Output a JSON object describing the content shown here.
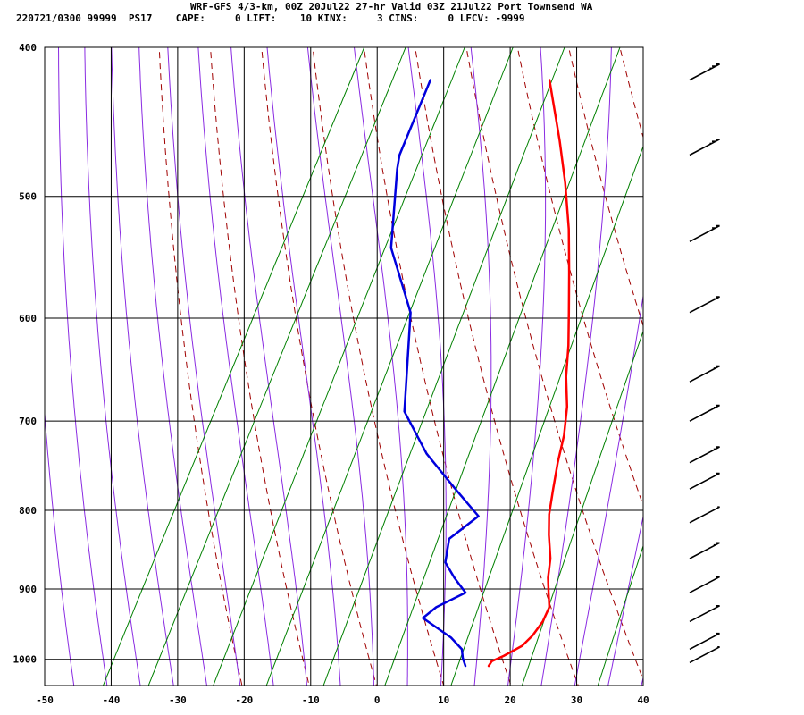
{
  "header": {
    "line1": "WRF-GFS 4/3-km, 00Z 20Jul22 27-hr Valid 03Z 21Jul22 Port Townsend WA",
    "line2": "220721/0300 99999  PS17    CAPE:     0 LIFT:    10 KINX:     3 CINS:     0 LFCV: -9999"
  },
  "chart_data": {
    "type": "line",
    "subtype": "skew-t log-p sounding",
    "title": "WRF-GFS 4/3-km, 00Z 20Jul22 27-hr Valid 03Z 21Jul22 Port Townsend WA",
    "xlabel": "",
    "ylabel": "",
    "x_ticks": [
      -50,
      -40,
      -30,
      -20,
      -10,
      0,
      10,
      20,
      30,
      40
    ],
    "y_ticks": [
      400,
      500,
      600,
      700,
      800,
      900,
      1000
    ],
    "xlim": [
      -50,
      40
    ],
    "ylim": [
      1040,
      400
    ],
    "y_scale": "log",
    "grid": true,
    "colors": {
      "temperature": "#ff0000",
      "dewpoint": "#0000dd",
      "dry_adiabats": "#a00000",
      "moist_adiabats": "#8a2be2",
      "mixing_ratio": "#008000",
      "grid": "#000000"
    },
    "series": [
      {
        "name": "temperature",
        "points": [
          [
            -19.6,
            420
          ],
          [
            -13.5,
            460
          ],
          [
            -9.5,
            490
          ],
          [
            -5.5,
            525
          ],
          [
            -2.2,
            560
          ],
          [
            0.8,
            595
          ],
          [
            3.2,
            625
          ],
          [
            5.2,
            655
          ],
          [
            7.6,
            685
          ],
          [
            9.3,
            715
          ],
          [
            10.4,
            745
          ],
          [
            11.7,
            775
          ],
          [
            13.0,
            805
          ],
          [
            14.5,
            830
          ],
          [
            16.5,
            860
          ],
          [
            17.6,
            885
          ],
          [
            18.8,
            905
          ],
          [
            20.0,
            925
          ],
          [
            20.1,
            945
          ],
          [
            19.6,
            965
          ],
          [
            18.8,
            980
          ],
          [
            16.8,
            995
          ],
          [
            15.4,
            1003
          ],
          [
            15.3,
            1010
          ]
        ]
      },
      {
        "name": "dewpoint",
        "points": [
          [
            -37.5,
            420
          ],
          [
            -36.5,
            470
          ],
          [
            -35.8,
            480
          ],
          [
            -30.8,
            540
          ],
          [
            -23.0,
            595
          ],
          [
            -16.5,
            690
          ],
          [
            -10.0,
            735
          ],
          [
            -3.0,
            775
          ],
          [
            2.5,
            807
          ],
          [
            -0.2,
            835
          ],
          [
            1.0,
            865
          ],
          [
            3.5,
            885
          ],
          [
            6.3,
            905
          ],
          [
            3.0,
            925
          ],
          [
            1.8,
            940
          ],
          [
            7.5,
            968
          ],
          [
            10.0,
            985
          ],
          [
            10.8,
            998
          ],
          [
            11.8,
            1010
          ]
        ]
      }
    ],
    "wind_barbs": [
      {
        "p": 420,
        "speed_kt": 25
      },
      {
        "p": 470,
        "speed_kt": 25
      },
      {
        "p": 535,
        "speed_kt": 20
      },
      {
        "p": 595,
        "speed_kt": 15
      },
      {
        "p": 660,
        "speed_kt": 15
      },
      {
        "p": 700,
        "speed_kt": 15
      },
      {
        "p": 745,
        "speed_kt": 15
      },
      {
        "p": 775,
        "speed_kt": 10
      },
      {
        "p": 815,
        "speed_kt": 5
      },
      {
        "p": 860,
        "speed_kt": 15
      },
      {
        "p": 905,
        "speed_kt": 10
      },
      {
        "p": 945,
        "speed_kt": 10
      },
      {
        "p": 985,
        "speed_kt": 10
      },
      {
        "p": 1005,
        "speed_kt": 5
      }
    ]
  }
}
